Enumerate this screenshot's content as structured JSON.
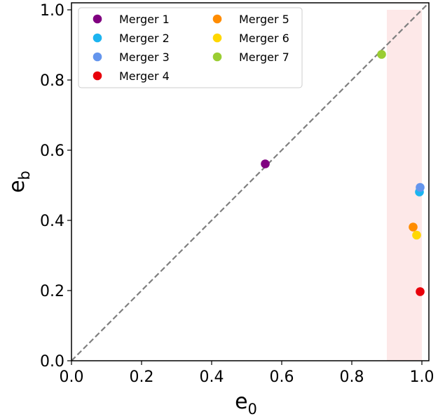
{
  "chart_data": {
    "type": "scatter",
    "xlabel": {
      "base": "e",
      "sub": "0"
    },
    "ylabel": {
      "base": "e",
      "sub": "b"
    },
    "xlim": [
      0.0,
      1.02
    ],
    "ylim": [
      0.0,
      1.02
    ],
    "xticks": [
      "0.0",
      "0.2",
      "0.4",
      "0.6",
      "0.8",
      "1.0"
    ],
    "yticks": [
      "0.0",
      "0.2",
      "0.4",
      "0.6",
      "0.8",
      "1.0"
    ],
    "xtick_values": [
      0.0,
      0.2,
      0.4,
      0.6,
      0.8,
      1.0
    ],
    "ytick_values": [
      0.0,
      0.2,
      0.4,
      0.6,
      0.8,
      1.0
    ],
    "grid": false,
    "legend_position": "top-left",
    "legend_columns": 2,
    "reference_line": {
      "type": "diagonal",
      "from": [
        0,
        0
      ],
      "to": [
        1.02,
        1.02
      ],
      "style": "dashed",
      "color": "#808080"
    },
    "shaded_region": {
      "x": [
        0.9,
        1.0
      ],
      "y": [
        0.0,
        1.0
      ],
      "color": "#fde8e8"
    },
    "series": [
      {
        "name": "Merger 1",
        "color": "#800080",
        "x": [
          0.553
        ],
        "y": [
          0.561
        ]
      },
      {
        "name": "Merger 2",
        "color": "#1cb4f0",
        "x": [
          0.993
        ],
        "y": [
          0.481
        ]
      },
      {
        "name": "Merger 3",
        "color": "#6495ed",
        "x": [
          0.995
        ],
        "y": [
          0.494
        ]
      },
      {
        "name": "Merger 4",
        "color": "#e8000b",
        "x": [
          0.995
        ],
        "y": [
          0.197
        ]
      },
      {
        "name": "Merger 5",
        "color": "#ff8c00",
        "x": [
          0.975
        ],
        "y": [
          0.381
        ]
      },
      {
        "name": "Merger 6",
        "color": "#ffd700",
        "x": [
          0.985
        ],
        "y": [
          0.358
        ]
      },
      {
        "name": "Merger 7",
        "color": "#9acd32",
        "x": [
          0.885
        ],
        "y": [
          0.873
        ]
      }
    ]
  }
}
